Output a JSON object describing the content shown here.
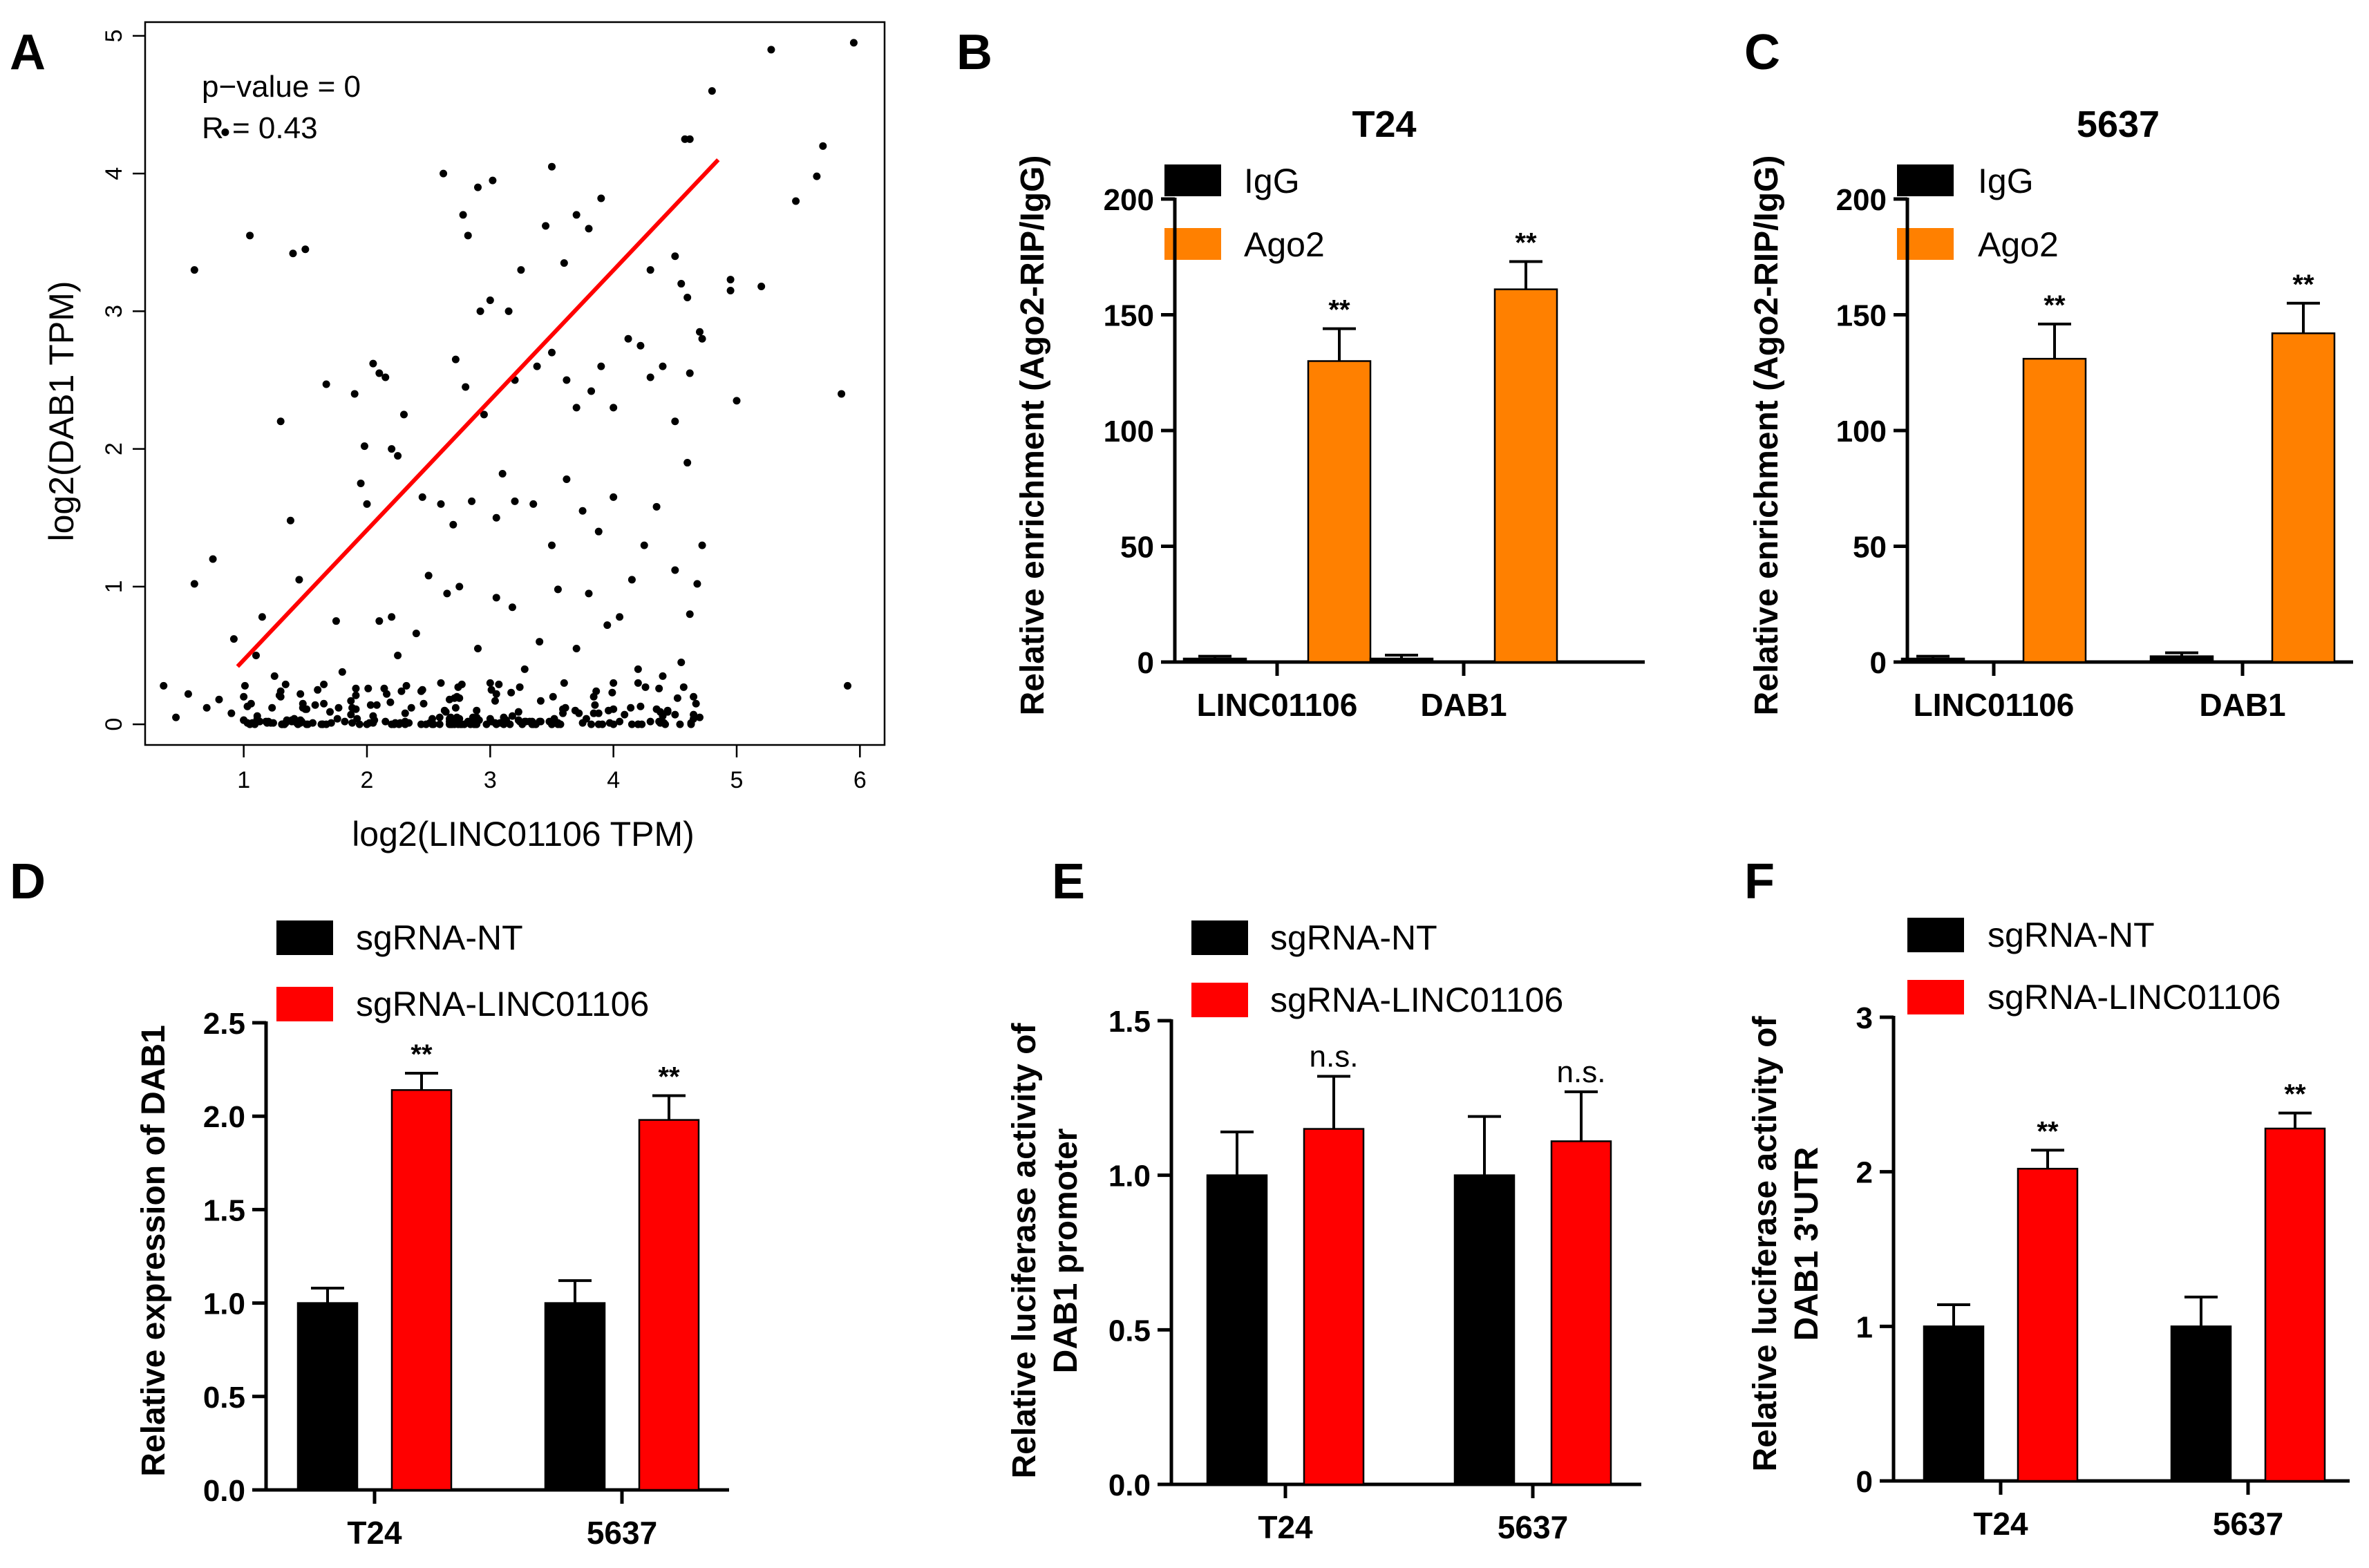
{
  "panel_letters": [
    "A",
    "B",
    "C",
    "D",
    "E",
    "F"
  ],
  "colors": {
    "igg": "#000000",
    "ago2": "#FF8000",
    "sgnt": "#000000",
    "sglinc": "#FF0000",
    "fit_line": "#FF0000",
    "points": "#000000"
  },
  "chart_data": [
    {
      "panel": "A",
      "type": "scatter",
      "xlabel": "log2(LINC01106 TPM)",
      "ylabel": "log2(DAB1 TPM)",
      "xlim": [
        0.2,
        6.2
      ],
      "ylim": [
        -0.15,
        5.1
      ],
      "xticks": [
        1,
        2,
        3,
        4,
        5,
        6
      ],
      "yticks": [
        0,
        1,
        2,
        3,
        4,
        5
      ],
      "annotations": [
        "p−value = 0",
        "R = 0.43"
      ],
      "fit_line": {
        "x": [
          0.95,
          4.85
        ],
        "y": [
          0.42,
          4.1
        ]
      },
      "note": "points are approximate; see script for list"
    },
    {
      "panel": "B",
      "type": "bar",
      "title": "T24",
      "ylabel": "Relative enrichment (Ago2-RIP/IgG)",
      "categories": [
        "LINC01106",
        "DAB1"
      ],
      "ylim": [
        0,
        200
      ],
      "yticks": [
        0,
        50,
        100,
        150,
        200
      ],
      "series": [
        {
          "name": "IgG",
          "values": [
            1.5,
            1.5
          ],
          "errors": [
            1,
            1.5
          ]
        },
        {
          "name": "Ago2",
          "values": [
            130,
            161
          ],
          "errors": [
            14,
            12
          ]
        }
      ],
      "significance": [
        "**",
        "**"
      ]
    },
    {
      "panel": "C",
      "type": "bar",
      "title": "5637",
      "ylabel": "Relative enrichment (Ago2-RIP/IgG)",
      "categories": [
        "LINC01106",
        "DAB1"
      ],
      "ylim": [
        0,
        200
      ],
      "yticks": [
        0,
        50,
        100,
        150,
        200
      ],
      "series": [
        {
          "name": "IgG",
          "values": [
            1.5,
            2.5
          ],
          "errors": [
            1,
            1.5
          ]
        },
        {
          "name": "Ago2",
          "values": [
            131,
            142
          ],
          "errors": [
            15,
            13
          ]
        }
      ],
      "significance": [
        "**",
        "**"
      ]
    },
    {
      "panel": "D",
      "type": "bar",
      "ylabel": "Relative expression of DAB1",
      "categories": [
        "T24",
        "5637"
      ],
      "ylim": [
        0,
        2.5
      ],
      "yticks": [
        "0.0",
        "0.5",
        "1.0",
        "1.5",
        "2.0",
        "2.5"
      ],
      "series": [
        {
          "name": "sgRNA-NT",
          "values": [
            1.0,
            1.0
          ],
          "errors": [
            0.08,
            0.12
          ]
        },
        {
          "name": "sgRNA-LINC01106",
          "values": [
            2.14,
            1.98
          ],
          "errors": [
            0.09,
            0.13
          ]
        }
      ],
      "significance": [
        "**",
        "**"
      ]
    },
    {
      "panel": "E",
      "type": "bar",
      "ylabel": [
        "Relative luciferase activity of",
        "DAB1 promoter"
      ],
      "categories": [
        "T24",
        "5637"
      ],
      "ylim": [
        0,
        1.5
      ],
      "yticks": [
        "0.0",
        "0.5",
        "1.0",
        "1.5"
      ],
      "series": [
        {
          "name": "sgRNA-NT",
          "values": [
            1.0,
            1.0
          ],
          "errors": [
            0.14,
            0.19
          ]
        },
        {
          "name": "sgRNA-LINC01106",
          "values": [
            1.15,
            1.11
          ],
          "errors": [
            0.17,
            0.16
          ]
        }
      ],
      "significance": [
        "n.s.",
        "n.s."
      ]
    },
    {
      "panel": "F",
      "type": "bar",
      "ylabel": [
        "Relative luciferase activity of",
        "DAB1 3'UTR"
      ],
      "categories": [
        "T24",
        "5637"
      ],
      "ylim": [
        0,
        3
      ],
      "yticks": [
        "0",
        "1",
        "2",
        "3"
      ],
      "series": [
        {
          "name": "sgRNA-NT",
          "values": [
            1.0,
            1.0
          ],
          "errors": [
            0.14,
            0.19
          ]
        },
        {
          "name": "sgRNA-LINC01106",
          "values": [
            2.02,
            2.28
          ],
          "errors": [
            0.12,
            0.1
          ]
        }
      ],
      "significance": [
        "**",
        "**"
      ]
    }
  ]
}
